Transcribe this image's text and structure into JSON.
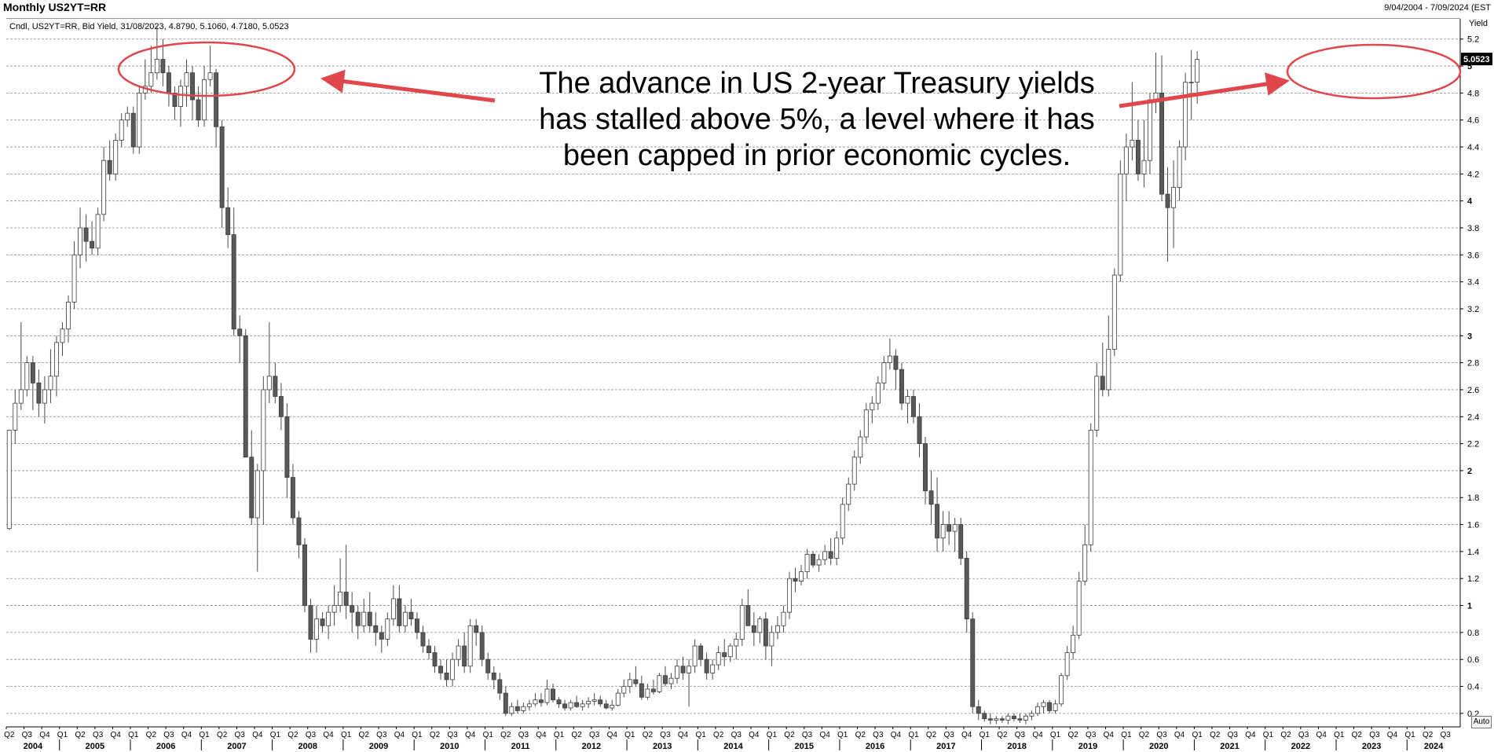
{
  "header": {
    "title": "Monthly US2YT=RR",
    "date_range": "9/04/2004 - 7/09/2024 (EST"
  },
  "legend_text": "Cndl, US2YT=RR, Bid Yield, 31/08/2023, 4.8790, 5.1060, 4.7180, 5.0523",
  "annotation": {
    "lines": [
      "The advance in US 2-year Treasury yields",
      "has stalled above 5%, a level where it has",
      "been capped in prior economic cycles."
    ],
    "ellipse_color": "#e0474c",
    "arrow_color": "#e0474c"
  },
  "auto_label": "Auto",
  "chart_data": {
    "type": "candlestick",
    "series_name": "US2YT=RR",
    "frequency": "Monthly",
    "ylabel": "Yield",
    "ylim": [
      0.1,
      5.35
    ],
    "yticks": [
      "0.2",
      "0.4",
      "0.6",
      "0.8",
      "1",
      "1.2",
      "1.4",
      "1.6",
      "1.8",
      "2",
      "2.2",
      "2.4",
      "2.6",
      "2.8",
      "3",
      "3.2",
      "3.4",
      "3.6",
      "3.8",
      "4",
      "4.2",
      "4.4",
      "4.6",
      "4.8",
      "5",
      "5.2"
    ],
    "bold_yticks": [
      "1",
      "2",
      "3",
      "4",
      "5"
    ],
    "last_value": "5.0523",
    "grid": true,
    "up_color": "#ffffff",
    "down_color": "#595959",
    "x_quarter_labels": [
      "Q2",
      "Q3",
      "Q4",
      "Q1",
      "Q2",
      "Q3",
      "Q4",
      "Q1",
      "Q2",
      "Q3",
      "Q4",
      "Q1",
      "Q2",
      "Q3",
      "Q4",
      "Q1",
      "Q2",
      "Q3",
      "Q4",
      "Q1",
      "Q2",
      "Q3",
      "Q4",
      "Q1",
      "Q2",
      "Q3",
      "Q4",
      "Q1",
      "Q2",
      "Q3",
      "Q4",
      "Q1",
      "Q2",
      "Q3",
      "Q4",
      "Q1",
      "Q2",
      "Q3",
      "Q4",
      "Q1",
      "Q2",
      "Q3",
      "Q4",
      "Q1",
      "Q2",
      "Q3",
      "Q4",
      "Q1",
      "Q2",
      "Q3",
      "Q4",
      "Q1",
      "Q2",
      "Q3",
      "Q4",
      "Q1",
      "Q2",
      "Q3",
      "Q4",
      "Q1",
      "Q2",
      "Q3",
      "Q4",
      "Q1",
      "Q2",
      "Q3",
      "Q4",
      "Q1",
      "Q2",
      "Q3",
      "Q4",
      "Q1",
      "Q2",
      "Q3",
      "Q4",
      "Q1",
      "Q2",
      "Q3",
      "Q4",
      "Q1",
      "Q2",
      "Q3"
    ],
    "x_year_labels": [
      "2004",
      "2005",
      "2006",
      "2007",
      "2008",
      "2009",
      "2010",
      "2011",
      "2012",
      "2013",
      "2014",
      "2015",
      "2016",
      "2017",
      "2018",
      "2019",
      "2020",
      "2021",
      "2022",
      "2023",
      "2024"
    ],
    "start": "2004-04",
    "candles": [
      [
        1.57,
        2.3,
        1.56,
        2.3
      ],
      [
        2.3,
        2.6,
        2.2,
        2.5
      ],
      [
        2.5,
        3.1,
        2.45,
        2.6
      ],
      [
        2.6,
        2.85,
        2.55,
        2.8
      ],
      [
        2.8,
        2.85,
        2.45,
        2.65
      ],
      [
        2.65,
        2.75,
        2.4,
        2.5
      ],
      [
        2.5,
        2.7,
        2.35,
        2.6
      ],
      [
        2.6,
        2.9,
        2.5,
        2.7
      ],
      [
        2.7,
        3.0,
        2.55,
        2.95
      ],
      [
        2.95,
        3.1,
        2.85,
        3.05
      ],
      [
        3.05,
        3.3,
        2.95,
        3.25
      ],
      [
        3.25,
        3.7,
        3.2,
        3.6
      ],
      [
        3.6,
        3.95,
        3.5,
        3.8
      ],
      [
        3.8,
        3.9,
        3.55,
        3.7
      ],
      [
        3.7,
        3.85,
        3.6,
        3.65
      ],
      [
        3.65,
        3.95,
        3.6,
        3.9
      ],
      [
        3.9,
        4.4,
        3.85,
        4.3
      ],
      [
        4.3,
        4.45,
        4.15,
        4.2
      ],
      [
        4.2,
        4.5,
        4.15,
        4.45
      ],
      [
        4.45,
        4.65,
        4.4,
        4.6
      ],
      [
        4.6,
        4.7,
        4.55,
        4.65
      ],
      [
        4.65,
        4.7,
        4.35,
        4.4
      ],
      [
        4.4,
        4.85,
        4.35,
        4.8
      ],
      [
        4.8,
        5.05,
        4.75,
        4.85
      ],
      [
        4.85,
        5.15,
        4.8,
        4.95
      ],
      [
        4.95,
        5.3,
        4.9,
        5.05
      ],
      [
        5.05,
        5.2,
        4.85,
        4.95
      ],
      [
        4.95,
        5.0,
        4.7,
        4.8
      ],
      [
        4.8,
        4.85,
        4.6,
        4.7
      ],
      [
        4.7,
        4.9,
        4.55,
        4.85
      ],
      [
        4.85,
        5.05,
        4.7,
        4.95
      ],
      [
        4.95,
        5.0,
        4.6,
        4.75
      ],
      [
        4.75,
        4.85,
        4.55,
        4.6
      ],
      [
        4.6,
        5.0,
        4.55,
        4.9
      ],
      [
        4.9,
        5.15,
        4.85,
        4.95
      ],
      [
        4.95,
        4.98,
        4.4,
        4.55
      ],
      [
        4.55,
        4.6,
        3.8,
        3.95
      ],
      [
        3.95,
        4.1,
        3.65,
        3.75
      ],
      [
        3.75,
        3.95,
        3.0,
        3.05
      ],
      [
        3.05,
        3.15,
        2.8,
        3.0
      ],
      [
        3.0,
        3.05,
        2.1,
        2.1
      ],
      [
        2.1,
        2.3,
        1.6,
        1.65
      ],
      [
        1.65,
        2.05,
        1.25,
        2.0
      ],
      [
        2.0,
        2.7,
        1.6,
        2.6
      ],
      [
        2.6,
        3.1,
        2.5,
        2.7
      ],
      [
        2.7,
        2.8,
        2.5,
        2.55
      ],
      [
        2.55,
        2.65,
        2.3,
        2.4
      ],
      [
        2.4,
        2.5,
        1.8,
        1.95
      ],
      [
        1.95,
        2.05,
        1.6,
        1.65
      ],
      [
        1.65,
        1.7,
        1.35,
        1.45
      ],
      [
        1.45,
        1.5,
        0.95,
        1.0
      ],
      [
        1.0,
        1.05,
        0.65,
        0.75
      ],
      [
        0.75,
        1.0,
        0.65,
        0.9
      ],
      [
        0.9,
        0.95,
        0.8,
        0.85
      ],
      [
        0.85,
        1.0,
        0.75,
        0.95
      ],
      [
        0.95,
        1.15,
        0.85,
        1.0
      ],
      [
        1.0,
        1.35,
        0.95,
        1.1
      ],
      [
        1.1,
        1.45,
        0.9,
        1.0
      ],
      [
        1.0,
        1.1,
        0.8,
        0.95
      ],
      [
        0.95,
        1.0,
        0.75,
        0.85
      ],
      [
        0.85,
        1.05,
        0.8,
        0.95
      ],
      [
        0.95,
        1.1,
        0.8,
        0.85
      ],
      [
        0.85,
        0.95,
        0.7,
        0.8
      ],
      [
        0.8,
        0.85,
        0.65,
        0.75
      ],
      [
        0.75,
        0.95,
        0.7,
        0.9
      ],
      [
        0.9,
        1.15,
        0.85,
        1.05
      ],
      [
        1.05,
        1.15,
        0.8,
        0.85
      ],
      [
        0.85,
        1.0,
        0.8,
        0.95
      ],
      [
        0.95,
        1.05,
        0.85,
        0.9
      ],
      [
        0.9,
        0.95,
        0.75,
        0.8
      ],
      [
        0.8,
        0.85,
        0.65,
        0.7
      ],
      [
        0.7,
        0.75,
        0.6,
        0.65
      ],
      [
        0.65,
        0.7,
        0.5,
        0.55
      ],
      [
        0.55,
        0.6,
        0.45,
        0.5
      ],
      [
        0.5,
        0.6,
        0.4,
        0.45
      ],
      [
        0.45,
        0.65,
        0.4,
        0.6
      ],
      [
        0.6,
        0.75,
        0.55,
        0.7
      ],
      [
        0.7,
        0.8,
        0.5,
        0.55
      ],
      [
        0.55,
        0.9,
        0.5,
        0.85
      ],
      [
        0.85,
        0.9,
        0.7,
        0.8
      ],
      [
        0.8,
        0.85,
        0.55,
        0.6
      ],
      [
        0.6,
        0.65,
        0.45,
        0.5
      ],
      [
        0.5,
        0.55,
        0.38,
        0.45
      ],
      [
        0.45,
        0.5,
        0.3,
        0.35
      ],
      [
        0.35,
        0.4,
        0.18,
        0.2
      ],
      [
        0.2,
        0.28,
        0.18,
        0.25
      ],
      [
        0.25,
        0.3,
        0.2,
        0.22
      ],
      [
        0.22,
        0.28,
        0.2,
        0.25
      ],
      [
        0.25,
        0.3,
        0.22,
        0.27
      ],
      [
        0.27,
        0.35,
        0.25,
        0.3
      ],
      [
        0.3,
        0.35,
        0.25,
        0.28
      ],
      [
        0.28,
        0.45,
        0.26,
        0.38
      ],
      [
        0.38,
        0.42,
        0.28,
        0.3
      ],
      [
        0.3,
        0.32,
        0.24,
        0.27
      ],
      [
        0.27,
        0.3,
        0.22,
        0.24
      ],
      [
        0.24,
        0.3,
        0.22,
        0.28
      ],
      [
        0.28,
        0.33,
        0.24,
        0.25
      ],
      [
        0.25,
        0.3,
        0.22,
        0.27
      ],
      [
        0.27,
        0.32,
        0.24,
        0.29
      ],
      [
        0.29,
        0.35,
        0.26,
        0.3
      ],
      [
        0.3,
        0.33,
        0.25,
        0.27
      ],
      [
        0.27,
        0.3,
        0.23,
        0.24
      ],
      [
        0.24,
        0.3,
        0.22,
        0.26
      ],
      [
        0.26,
        0.38,
        0.25,
        0.35
      ],
      [
        0.35,
        0.45,
        0.32,
        0.4
      ],
      [
        0.4,
        0.5,
        0.35,
        0.45
      ],
      [
        0.45,
        0.55,
        0.4,
        0.42
      ],
      [
        0.42,
        0.48,
        0.3,
        0.32
      ],
      [
        0.32,
        0.42,
        0.3,
        0.38
      ],
      [
        0.38,
        0.45,
        0.34,
        0.36
      ],
      [
        0.36,
        0.5,
        0.35,
        0.48
      ],
      [
        0.48,
        0.55,
        0.4,
        0.42
      ],
      [
        0.42,
        0.5,
        0.38,
        0.46
      ],
      [
        0.46,
        0.6,
        0.42,
        0.55
      ],
      [
        0.55,
        0.62,
        0.45,
        0.5
      ],
      [
        0.5,
        0.6,
        0.25,
        0.55
      ],
      [
        0.55,
        0.75,
        0.5,
        0.7
      ],
      [
        0.7,
        0.72,
        0.55,
        0.6
      ],
      [
        0.6,
        0.65,
        0.45,
        0.5
      ],
      [
        0.5,
        0.6,
        0.45,
        0.56
      ],
      [
        0.56,
        0.7,
        0.52,
        0.65
      ],
      [
        0.65,
        0.75,
        0.55,
        0.62
      ],
      [
        0.62,
        0.72,
        0.58,
        0.7
      ],
      [
        0.7,
        0.8,
        0.6,
        0.75
      ],
      [
        0.75,
        1.05,
        0.7,
        1.0
      ],
      [
        1.0,
        1.12,
        0.85,
        0.85
      ],
      [
        0.85,
        0.95,
        0.7,
        0.8
      ],
      [
        0.8,
        0.92,
        0.72,
        0.9
      ],
      [
        0.9,
        0.95,
        0.6,
        0.7
      ],
      [
        0.7,
        0.85,
        0.55,
        0.8
      ],
      [
        0.8,
        0.92,
        0.75,
        0.85
      ],
      [
        0.85,
        1.0,
        0.8,
        0.95
      ],
      [
        0.95,
        1.25,
        0.9,
        1.2
      ],
      [
        1.2,
        1.28,
        1.1,
        1.18
      ],
      [
        1.18,
        1.3,
        1.15,
        1.25
      ],
      [
        1.25,
        1.42,
        1.2,
        1.38
      ],
      [
        1.38,
        1.4,
        1.28,
        1.3
      ],
      [
        1.3,
        1.38,
        1.25,
        1.34
      ],
      [
        1.34,
        1.45,
        1.3,
        1.4
      ],
      [
        1.4,
        1.5,
        1.3,
        1.35
      ],
      [
        1.35,
        1.55,
        1.3,
        1.5
      ],
      [
        1.5,
        1.8,
        1.45,
        1.75
      ],
      [
        1.75,
        1.95,
        1.7,
        1.9
      ],
      [
        1.9,
        2.15,
        1.85,
        2.1
      ],
      [
        2.1,
        2.3,
        2.05,
        2.25
      ],
      [
        2.25,
        2.5,
        2.2,
        2.45
      ],
      [
        2.45,
        2.55,
        2.35,
        2.5
      ],
      [
        2.5,
        2.7,
        2.45,
        2.65
      ],
      [
        2.65,
        2.85,
        2.6,
        2.8
      ],
      [
        2.8,
        2.98,
        2.75,
        2.85
      ],
      [
        2.85,
        2.9,
        2.6,
        2.75
      ],
      [
        2.75,
        2.8,
        2.45,
        2.5
      ],
      [
        2.5,
        2.6,
        2.35,
        2.55
      ],
      [
        2.55,
        2.6,
        2.35,
        2.4
      ],
      [
        2.4,
        2.5,
        2.1,
        2.2
      ],
      [
        2.2,
        2.25,
        1.75,
        1.85
      ],
      [
        1.85,
        2.0,
        1.6,
        1.75
      ],
      [
        1.75,
        1.95,
        1.4,
        1.5
      ],
      [
        1.5,
        1.7,
        1.4,
        1.6
      ],
      [
        1.6,
        1.7,
        1.45,
        1.55
      ],
      [
        1.55,
        1.65,
        1.4,
        1.6
      ],
      [
        1.6,
        1.65,
        1.3,
        1.35
      ],
      [
        1.35,
        1.4,
        0.8,
        0.9
      ],
      [
        0.9,
        0.95,
        0.2,
        0.25
      ],
      [
        0.25,
        0.3,
        0.15,
        0.2
      ],
      [
        0.2,
        0.22,
        0.14,
        0.16
      ],
      [
        0.16,
        0.2,
        0.12,
        0.15
      ],
      [
        0.15,
        0.18,
        0.12,
        0.16
      ],
      [
        0.16,
        0.18,
        0.13,
        0.15
      ],
      [
        0.15,
        0.2,
        0.12,
        0.18
      ],
      [
        0.18,
        0.2,
        0.14,
        0.16
      ],
      [
        0.16,
        0.2,
        0.13,
        0.15
      ],
      [
        0.15,
        0.2,
        0.12,
        0.18
      ],
      [
        0.18,
        0.22,
        0.15,
        0.2
      ],
      [
        0.2,
        0.28,
        0.18,
        0.25
      ],
      [
        0.25,
        0.3,
        0.2,
        0.28
      ],
      [
        0.28,
        0.3,
        0.2,
        0.22
      ],
      [
        0.22,
        0.3,
        0.2,
        0.27
      ],
      [
        0.27,
        0.5,
        0.25,
        0.48
      ],
      [
        0.48,
        0.7,
        0.45,
        0.65
      ],
      [
        0.65,
        0.85,
        0.6,
        0.78
      ],
      [
        0.78,
        1.25,
        0.75,
        1.18
      ],
      [
        1.18,
        1.6,
        1.15,
        1.45
      ],
      [
        1.45,
        2.35,
        1.4,
        2.3
      ],
      [
        2.3,
        2.8,
        2.25,
        2.7
      ],
      [
        2.7,
        2.95,
        2.55,
        2.6
      ],
      [
        2.6,
        3.15,
        2.55,
        2.9
      ],
      [
        2.9,
        3.5,
        2.85,
        3.45
      ],
      [
        3.45,
        4.3,
        3.4,
        4.2
      ],
      [
        4.2,
        4.5,
        4.0,
        4.4
      ],
      [
        4.4,
        4.88,
        4.3,
        4.45
      ],
      [
        4.45,
        4.6,
        4.15,
        4.2
      ],
      [
        4.2,
        4.6,
        4.1,
        4.3
      ],
      [
        4.3,
        4.8,
        4.2,
        4.75
      ],
      [
        4.75,
        5.1,
        4.65,
        4.8
      ],
      [
        4.8,
        5.08,
        4.0,
        4.05
      ],
      [
        4.05,
        4.25,
        3.55,
        3.95
      ],
      [
        3.95,
        4.3,
        3.65,
        4.1
      ],
      [
        4.1,
        4.45,
        4.0,
        4.4
      ],
      [
        4.4,
        4.95,
        4.3,
        4.88
      ],
      [
        4.88,
        5.12,
        4.6,
        4.88
      ],
      [
        4.88,
        5.11,
        4.72,
        5.05
      ]
    ]
  }
}
